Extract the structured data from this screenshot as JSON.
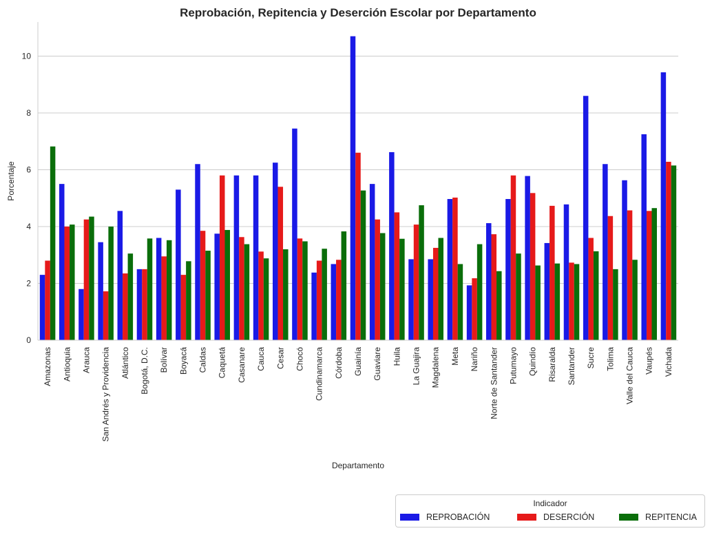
{
  "chart_data": {
    "type": "bar",
    "title": "Reprobación, Repitencia y Deserción Escolar por Departamento",
    "xlabel": "Departamento",
    "ylabel": "Porcentaje",
    "ylim": [
      0,
      11.2
    ],
    "yticks": [
      0,
      2,
      4,
      6,
      8,
      10
    ],
    "grid": true,
    "legend_position": "bottom-right",
    "legend_title": "Indicador",
    "categories": [
      "Amazonas",
      "Antioquia",
      "Arauca",
      "San Andrés y Providencia",
      "Atlántico",
      "Bogotá, D.C.",
      "Bolívar",
      "Boyacá",
      "Caldas",
      "Caquetá",
      "Casanare",
      "Cauca",
      "Cesar",
      "Chocó",
      "Cundinamarca",
      "Córdoba",
      "Guainía",
      "Guaviare",
      "Huila",
      "La Guajira",
      "Magdalena",
      "Meta",
      "Nariño",
      "Norte de Santander",
      "Putumayo",
      "Quindío",
      "Risaralda",
      "Santander",
      "Sucre",
      "Tolima",
      "Valle del Cauca",
      "Vaupés",
      "Vichada"
    ],
    "series": [
      {
        "name": "REPROBACIÓN",
        "color": "#1a1ae6",
        "values": [
          2.3,
          5.5,
          1.8,
          3.45,
          4.55,
          2.5,
          3.6,
          5.3,
          6.2,
          3.75,
          5.8,
          5.8,
          6.25,
          7.45,
          2.38,
          2.68,
          10.7,
          5.5,
          6.62,
          2.85,
          2.85,
          4.97,
          1.93,
          4.12,
          4.97,
          5.78,
          3.42,
          4.78,
          8.6,
          6.2,
          5.63,
          7.25,
          9.43
        ]
      },
      {
        "name": "DESERCIÓN",
        "color": "#e61a1a",
        "values": [
          2.8,
          4.0,
          4.25,
          1.72,
          2.35,
          2.5,
          2.95,
          2.3,
          3.85,
          5.8,
          3.63,
          3.12,
          5.4,
          3.58,
          2.8,
          2.83,
          6.6,
          4.25,
          4.5,
          4.07,
          3.25,
          5.02,
          2.18,
          3.73,
          5.8,
          5.18,
          4.73,
          2.73,
          3.6,
          4.37,
          4.57,
          4.55,
          6.28
        ]
      },
      {
        "name": "REPITENCIA",
        "color": "#0a6e0a",
        "values": [
          6.82,
          4.07,
          4.35,
          4.0,
          3.05,
          3.58,
          3.52,
          2.78,
          3.15,
          3.88,
          3.38,
          2.88,
          3.2,
          3.48,
          3.22,
          3.83,
          5.27,
          3.77,
          3.57,
          4.75,
          3.6,
          2.68,
          3.38,
          2.43,
          3.05,
          2.63,
          2.7,
          2.68,
          3.13,
          2.5,
          2.83,
          4.65,
          6.15
        ]
      }
    ]
  }
}
